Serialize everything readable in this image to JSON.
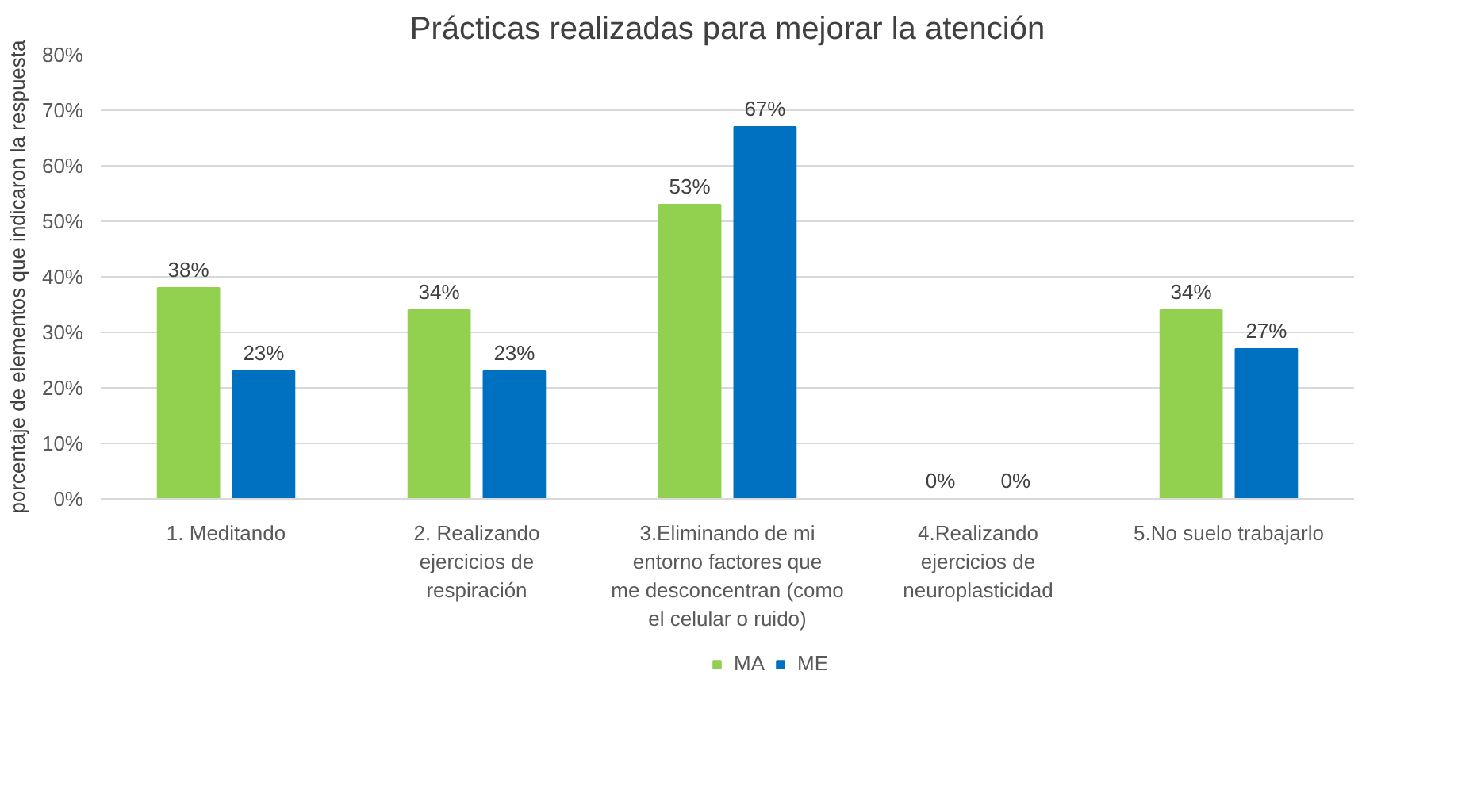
{
  "chart_data": {
    "type": "bar",
    "title": "Prácticas realizadas para mejorar la atención",
    "ylabel": "porcentaje de elementos que indicaron la respuesta",
    "categories": [
      "1. Meditando",
      "2. Realizando ejercicios de respiración",
      "3.Eliminando de mi entorno factores que me desconcentran (como el celular o ruido)",
      "4.Realizando ejercicios de neuroplasticidad",
      "5.No suelo trabajarlo"
    ],
    "series": [
      {
        "name": "MA",
        "color": "#92d050",
        "values": [
          38,
          34,
          53,
          0,
          34
        ],
        "value_labels": [
          "38%",
          "34%",
          "53%",
          "0%",
          "34%"
        ]
      },
      {
        "name": "ME",
        "color": "#0070c0",
        "values": [
          23,
          23,
          67,
          0,
          27
        ],
        "value_labels": [
          "23%",
          "23%",
          "67%",
          "0%",
          "27%"
        ]
      }
    ],
    "ylim": [
      0,
      80
    ],
    "yticks": [
      {
        "value": 0,
        "label": "0%"
      },
      {
        "value": 10,
        "label": "10%"
      },
      {
        "value": 20,
        "label": "20%"
      },
      {
        "value": 30,
        "label": "30%"
      },
      {
        "value": 40,
        "label": "40%"
      },
      {
        "value": 50,
        "label": "50%"
      },
      {
        "value": 60,
        "label": "60%"
      },
      {
        "value": 70,
        "label": "70%"
      },
      {
        "value": 80,
        "label": "80%"
      }
    ],
    "grid": "y",
    "legend": "bottom"
  }
}
